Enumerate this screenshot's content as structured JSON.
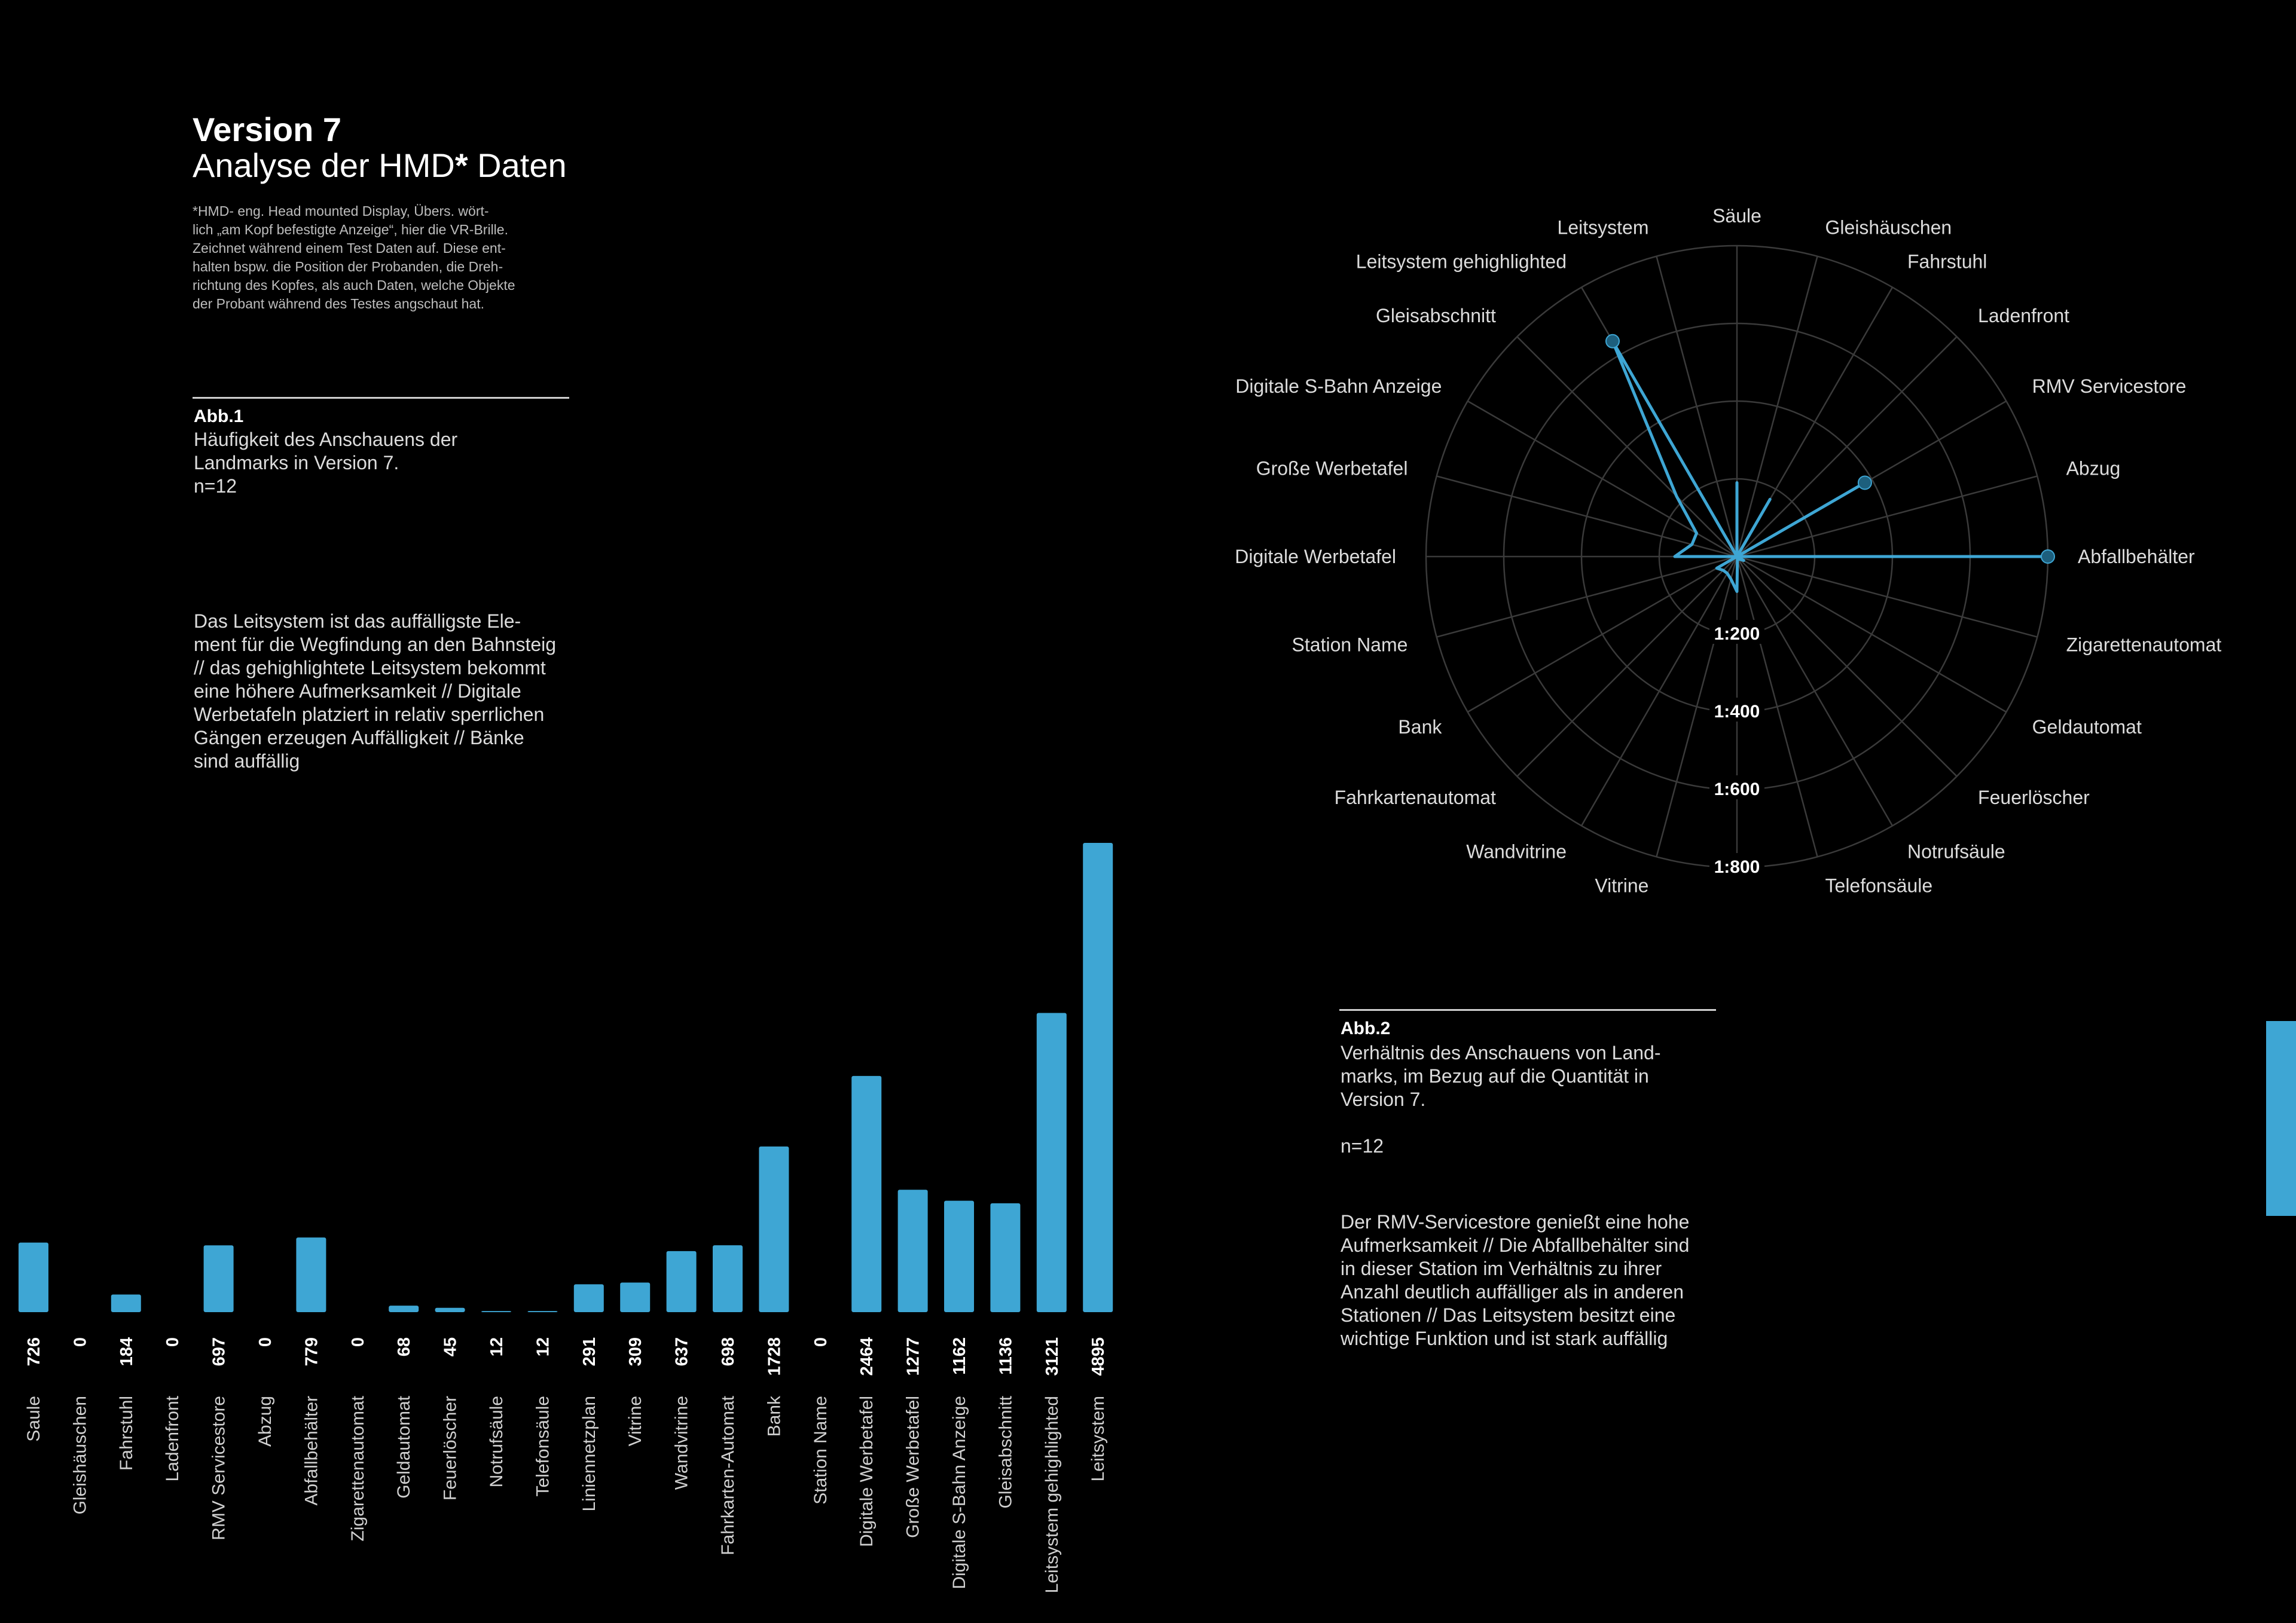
{
  "header": {
    "title": "Version 7",
    "subtitle_pre": "Analyse der HMD",
    "subtitle_star": "*",
    "subtitle_post": " Daten",
    "footnote": "*HMD- eng. Head mounted Display, Übers. wört-\nlich „am Kopf befestigte Anzeige“, hier die VR-Brille.\nZeichnet während einem Test Daten auf. Diese ent-\nhalten bspw. die Position der Probanden, die Dreh-\nrichtung des Kopfes, als auch Daten, welche Objekte\nder Probant während des Testes angschaut hat."
  },
  "figure1": {
    "label": "Abb.1",
    "caption": "Häufigkeit des Anschauens der\nLandmarks in Version 7.\nn=12",
    "text": "Das Leitsystem ist das auffälligste Ele-\nment für die Wegfindung an den Bahnsteig\n// das gehighlightete Leitsystem bekommt\neine höhere Aufmerksamkeit // Digitale\nWerbetafeln platziert in relativ sperrlichen\nGängen erzeugen Auffälligkeit // Bänke\nsind auffällig"
  },
  "figure2": {
    "label": "Abb.2",
    "caption": "Verhältnis des Anschauens von Land-\nmarks, im Bezug auf die Quantität in\nVersion 7.\n\nn=12",
    "text": "Der RMV-Servicestore genießt eine hohe\nAufmerksamkeit // Die Abfallbehälter sind\nin dieser Station im Verhältnis zu ihrer\nAnzahl deutlich auffälliger als in anderen\nStationen // Das Leitsystem besitzt eine\nwichtige Funktion und ist stark auffällig"
  },
  "colors": {
    "accent": "#3ea6d4",
    "background": "#000000",
    "grid": "#3a3a3a"
  },
  "chart_data": [
    {
      "type": "bar",
      "categories": [
        "Saule",
        "Gleishäuschen",
        "Fahrstuhl",
        "Ladenfront",
        "RMV Servicestore",
        "Abzug",
        "Abfallbehälter",
        "Zigarettenautomat",
        "Geldautomat",
        "Feuerlöscher",
        "Notrufsäule",
        "Telefonsäule",
        "Liniennetzplan",
        "Vitrine",
        "Wandvitrine",
        "Fahrkarten-Automat",
        "Bank",
        "Station Name",
        "Digitale Werbetafel",
        "Große Werbetafel",
        "Digitale S-Bahn Anzeige",
        "Gleisabschnitt",
        "Leitsystem gehighlighted",
        "Leitsystem"
      ],
      "values": [
        726,
        0,
        184,
        0,
        697,
        0,
        779,
        0,
        68,
        45,
        12,
        12,
        291,
        309,
        637,
        698,
        1728,
        0,
        2464,
        1277,
        1162,
        1136,
        3121,
        4895
      ],
      "value_labels": [
        "726",
        "0",
        "184",
        "0",
        "697",
        "0",
        "779",
        "0",
        "68",
        "45",
        "12",
        "12",
        "291",
        "309",
        "637",
        "698",
        "1728",
        "0",
        "2464",
        "1277",
        "1162",
        "1136",
        "3121",
        "4895"
      ],
      "ylim": [
        0,
        4895
      ]
    },
    {
      "type": "radar",
      "axes": [
        "Säule",
        "Gleishäuschen",
        "Fahrstuhl",
        "Ladenfront",
        "RMV Servicestore",
        "Abzug",
        "Abfallbehälter",
        "Zigarettenautomat",
        "Geldautomat",
        "Feuerlöscher",
        "Notrufsäule",
        "Telefonsäule",
        "1:800",
        "Vitrine",
        "Wandvitrine",
        "Fahrkartenautomat",
        "Bank",
        "Station Name",
        "Digitale Werbetafel",
        "Große Werbetafel",
        "Digitale S-Bahn Anzeige",
        "Gleisabschnitt",
        "Leitsystem gehighlighted",
        "Leitsystem"
      ],
      "axis_labels": [
        "Säule",
        "Gleishäuschen",
        "Fahrstuhl",
        "Ladenfront",
        "RMV Servicestore",
        "Abzug",
        "Abfallbehälter",
        "Zigarettenautomat",
        "Geldautomat",
        "Feuerlöscher",
        "Notrufsäule",
        "Telefonsäule",
        "",
        "Vitrine",
        "Wandvitrine",
        "Fahrkartenautomat",
        "Bank",
        "Station Name",
        "Digitale Werbetafel",
        "Große Werbetafel",
        "Digitale S-Bahn Anzeige",
        "Gleisabschnitt",
        "Leitsystem gehighlighted",
        "Leitsystem"
      ],
      "ring_labels": [
        "1:200",
        "1:400",
        "1:600",
        "1:800"
      ],
      "ring_values": [
        200,
        400,
        600,
        800
      ],
      "values": [
        190,
        0,
        170,
        0,
        380,
        0,
        800,
        0,
        20,
        10,
        5,
        5,
        90,
        60,
        50,
        50,
        60,
        0,
        160,
        120,
        120,
        220,
        640,
        0
      ],
      "highlighted_points": [
        4,
        6,
        22
      ],
      "rmax": 800
    }
  ]
}
